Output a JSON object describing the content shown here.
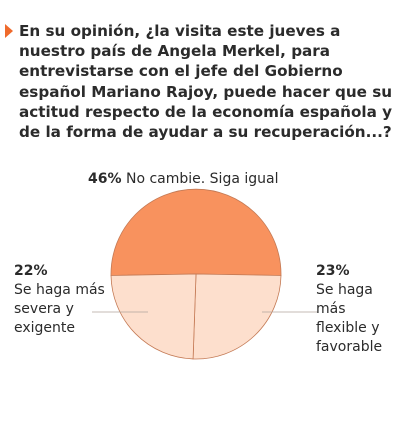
{
  "question": "En su opinión, ¿la visita este jueves a nuestro país de Angela Merkel, para entrevistarse con el jefe del Gobierno español Mariano Rajoy,  puede hacer que su actitud respecto de la economía española y de la forma de ayudar a su recuperación...?",
  "colors": {
    "accent": "#ef6a2c",
    "main_slice": "#f8925e",
    "light_slice": "#fddfcd",
    "outline": "#c47a55"
  },
  "chart_data": {
    "type": "pie",
    "slices": [
      {
        "value": 46,
        "percent_label": "46%",
        "label_lines": [
          "No cambie. Siga igual"
        ],
        "color": "#f8925e"
      },
      {
        "value": 23,
        "percent_label": "23%",
        "label_lines": [
          "Se haga más",
          "flexible y",
          "favorable"
        ],
        "color": "#fddfcd"
      },
      {
        "value": 22,
        "percent_label": "22%",
        "label_lines": [
          "Se haga más",
          "severa y",
          "exigente"
        ],
        "color": "#fddfcd"
      }
    ]
  }
}
